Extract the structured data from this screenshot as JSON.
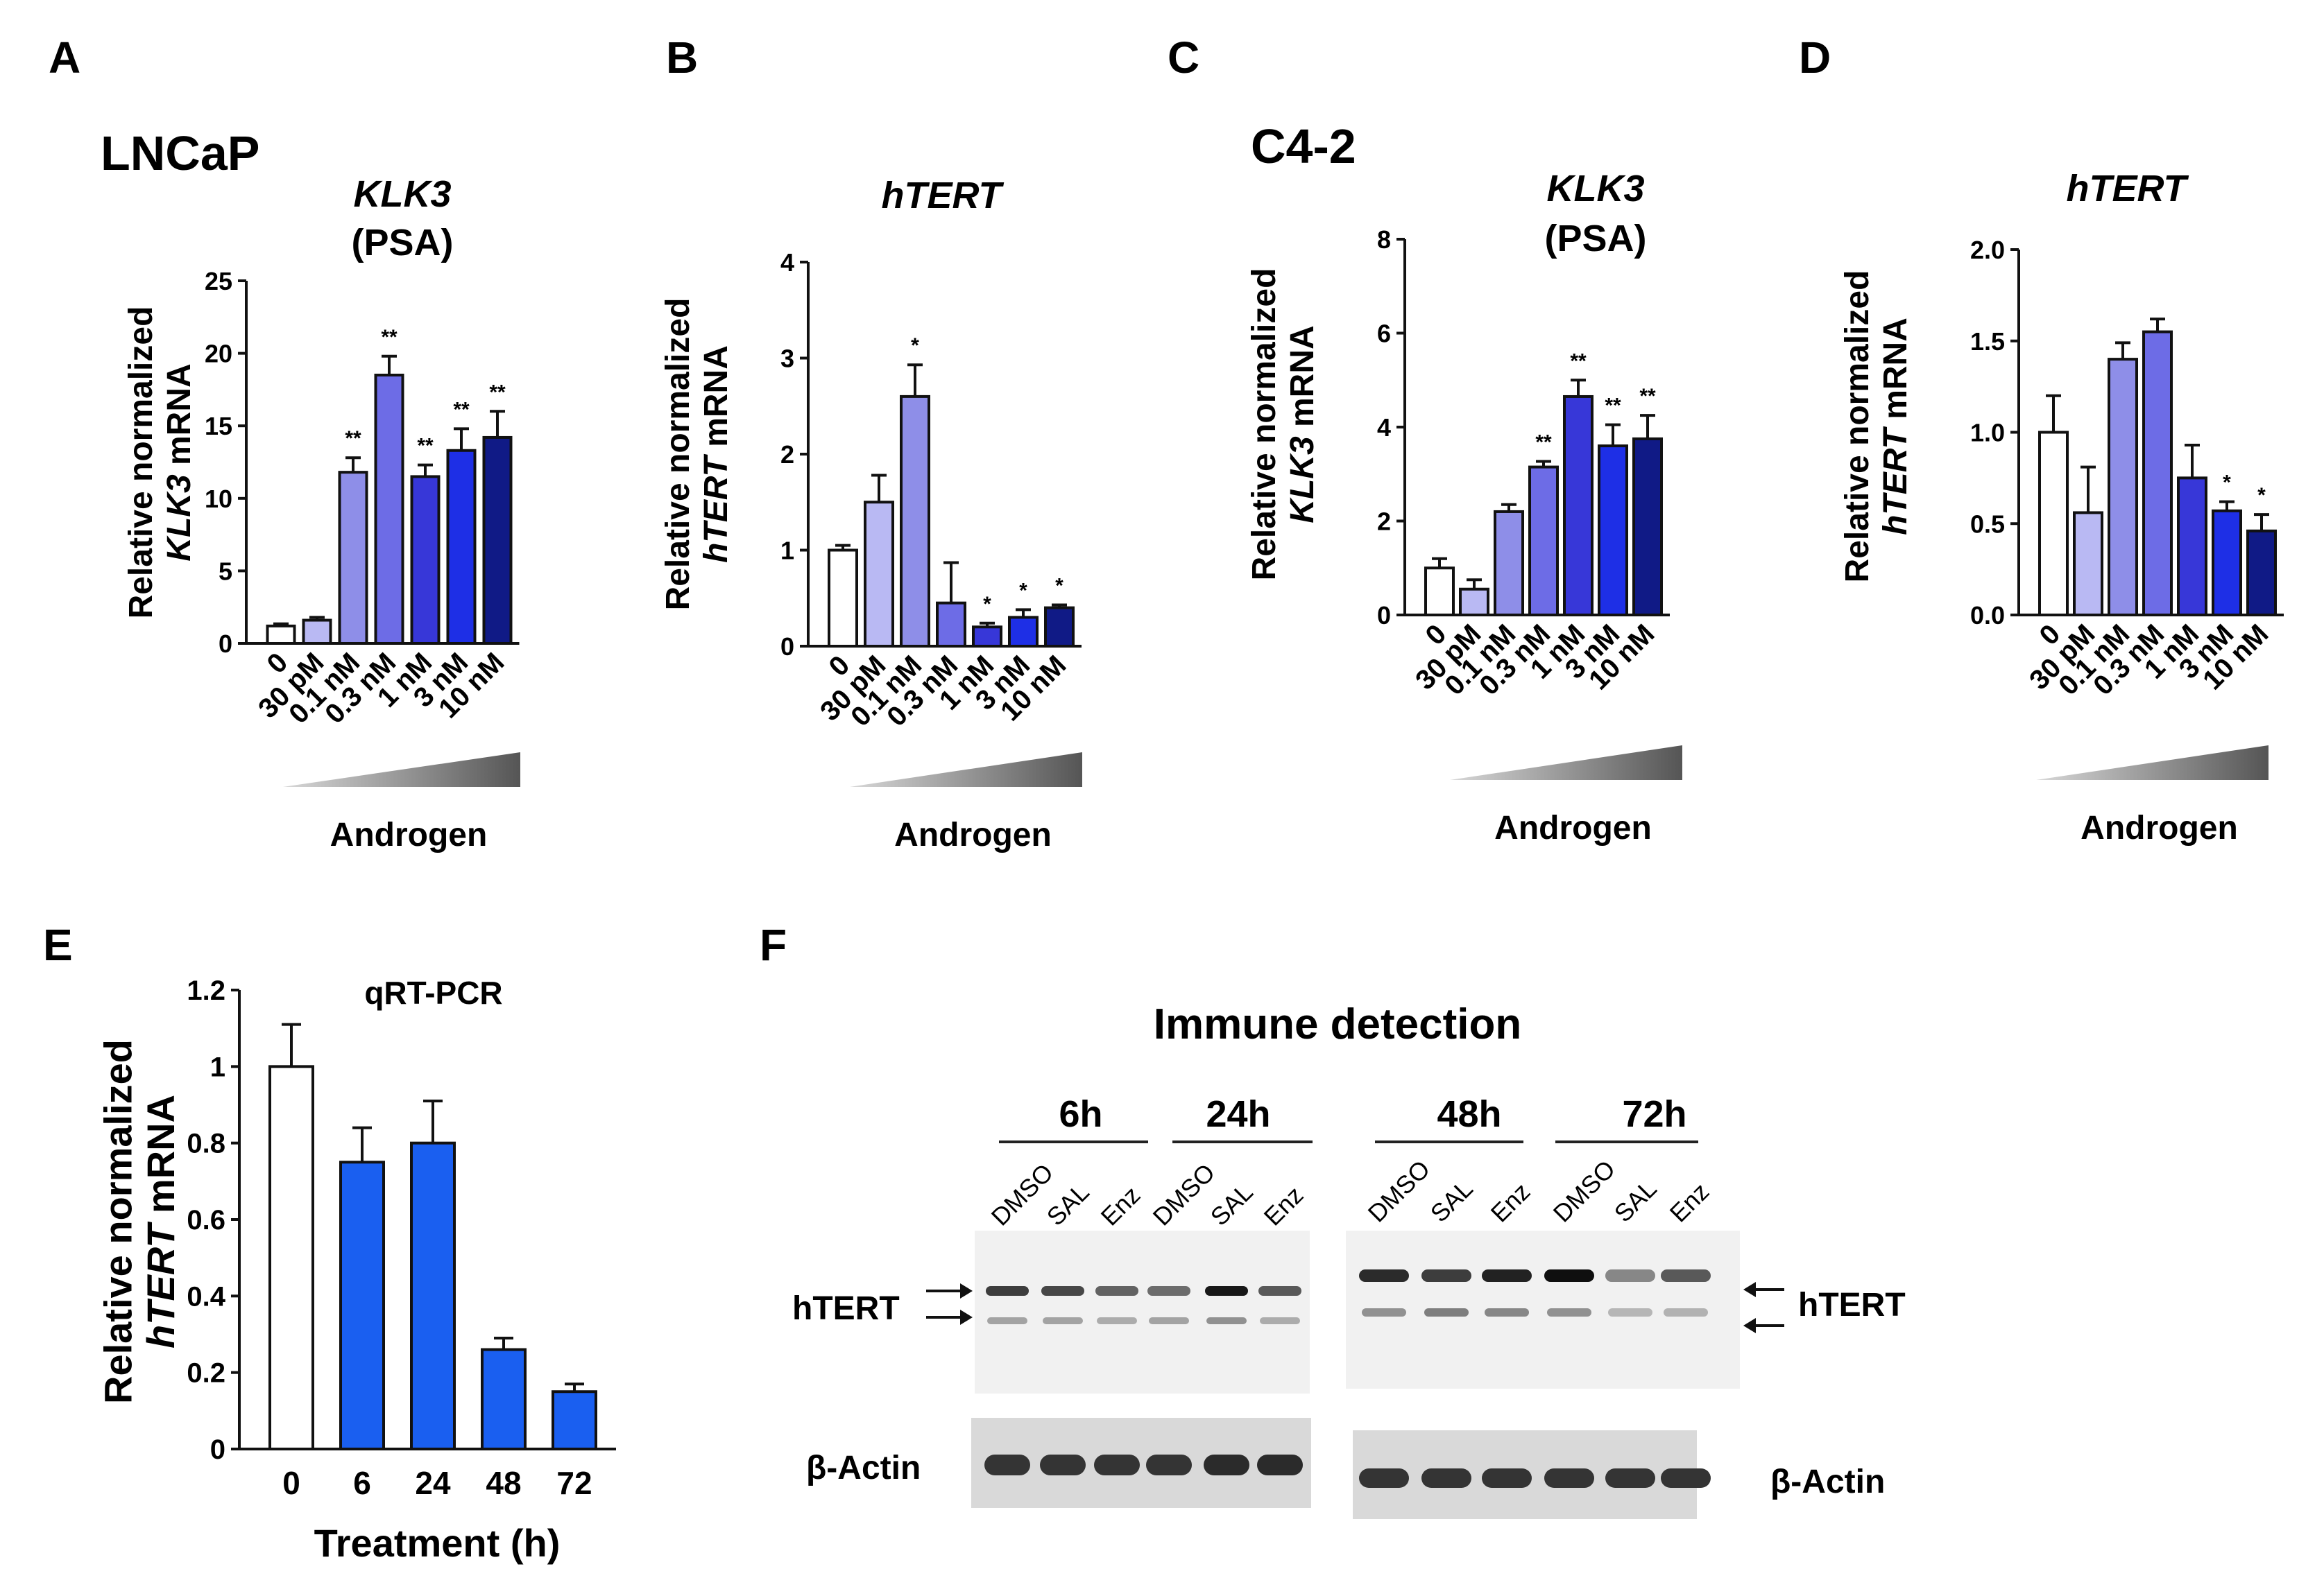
{
  "colors": {
    "c0": "#ffffff",
    "c30pM": "#b9b9f3",
    "c0_1nM": "#8e8ee8",
    "c0_3nM": "#6d6ce6",
    "c1nM": "#3737d8",
    "c3nM": "#1e2fe6",
    "c10nM": "#101a86",
    "blue": "#1a5ff0"
  },
  "panels": {
    "A": {
      "label": "A",
      "cell_line": "LNCaP"
    },
    "B": {
      "label": "B"
    },
    "C": {
      "label": "C",
      "cell_line": "C4-2"
    },
    "D": {
      "label": "D"
    },
    "E": {
      "label": "E"
    },
    "F": {
      "label": "F"
    }
  },
  "androgen_label": "Androgen",
  "chart_data": [
    {
      "id": "A",
      "type": "bar",
      "title_gene": "KLK3",
      "title_sub": "(PSA)",
      "ylabel_line1": "Relative normalized",
      "ylabel_gene": "KLK3",
      "ylabel_suffix": " mRNA",
      "categories": [
        "0",
        "30 pM",
        "0.1 nM",
        "0.3 nM",
        "1 nM",
        "3 nM",
        "10 nM"
      ],
      "values": [
        1.2,
        1.6,
        11.8,
        18.5,
        11.5,
        13.3,
        14.2
      ],
      "errors": [
        0.15,
        0.2,
        1.0,
        1.3,
        0.8,
        1.5,
        1.8
      ],
      "significance": [
        "",
        "",
        "**",
        "**",
        "**",
        "**",
        "**"
      ],
      "ylim": [
        0,
        25
      ],
      "yticks": [
        "0",
        "5",
        "10",
        "15",
        "20",
        "25"
      ],
      "ytick_values": [
        0,
        5,
        10,
        15,
        20,
        25
      ]
    },
    {
      "id": "B",
      "type": "bar",
      "title_gene": "hTERT",
      "title_sub": "",
      "ylabel_line1": "Relative normalized",
      "ylabel_gene": "hTERT",
      "ylabel_suffix": " mRNA",
      "categories": [
        "0",
        "30 pM",
        "0.1 nM",
        "0.3 nM",
        "1 nM",
        "3 nM",
        "10 nM"
      ],
      "values": [
        1.0,
        1.5,
        2.6,
        0.45,
        0.2,
        0.3,
        0.4
      ],
      "errors": [
        0.05,
        0.28,
        0.33,
        0.42,
        0.04,
        0.08,
        0.03
      ],
      "significance": [
        "",
        "",
        "*",
        "",
        "*",
        "*",
        "*"
      ],
      "ylim": [
        0,
        4
      ],
      "yticks": [
        "0",
        "1",
        "2",
        "3",
        "4"
      ],
      "ytick_values": [
        0,
        1,
        2,
        3,
        4
      ]
    },
    {
      "id": "C",
      "type": "bar",
      "title_gene": "KLK3",
      "title_sub": "(PSA)",
      "ylabel_line1": "Relative normalized",
      "ylabel_gene": "KLK3",
      "ylabel_suffix": " mRNA",
      "categories": [
        "0",
        "30 pM",
        "0.1 nM",
        "0.3 nM",
        "1 nM",
        "3 nM",
        "10 nM"
      ],
      "values": [
        1.0,
        0.55,
        2.2,
        3.15,
        4.65,
        3.6,
        3.75
      ],
      "errors": [
        0.2,
        0.2,
        0.15,
        0.12,
        0.35,
        0.45,
        0.5
      ],
      "significance": [
        "",
        "",
        "",
        "**",
        "**",
        "**",
        "**"
      ],
      "ylim": [
        0,
        8
      ],
      "yticks": [
        "0",
        "2",
        "4",
        "6",
        "8"
      ],
      "ytick_values": [
        0,
        2,
        4,
        6,
        8
      ]
    },
    {
      "id": "D",
      "type": "bar",
      "title_gene": "hTERT",
      "title_sub": "",
      "ylabel_line1": "Relative normalized",
      "ylabel_gene": "hTERT",
      "ylabel_suffix": " mRNA",
      "categories": [
        "0",
        "30 pM",
        "0.1 nM",
        "0.3 nM",
        "1 nM",
        "3 nM",
        "10 nM"
      ],
      "values": [
        1.0,
        0.56,
        1.4,
        1.55,
        0.75,
        0.57,
        0.46
      ],
      "errors": [
        0.2,
        0.25,
        0.09,
        0.07,
        0.18,
        0.05,
        0.09
      ],
      "significance": [
        "",
        "",
        "",
        "",
        "",
        "*",
        "*"
      ],
      "ylim": [
        0,
        2.0
      ],
      "yticks": [
        "0.0",
        "0.5",
        "1.0",
        "1.5",
        "2.0"
      ],
      "ytick_values": [
        0,
        0.5,
        1.0,
        1.5,
        2.0
      ]
    },
    {
      "id": "E",
      "type": "bar",
      "title": "qRT-PCR",
      "ylabel_line1": "Relative normalized",
      "ylabel_gene": "hTERT",
      "ylabel_suffix": " mRNA",
      "xlabel": "Treatment (h)",
      "categories": [
        "0",
        "6",
        "24",
        "48",
        "72"
      ],
      "values": [
        1.0,
        0.75,
        0.8,
        0.26,
        0.15
      ],
      "errors": [
        0.11,
        0.09,
        0.11,
        0.03,
        0.02
      ],
      "ylim": [
        0,
        1.2
      ],
      "yticks": [
        "0",
        "0.2",
        "0.4",
        "0.6",
        "0.8",
        "1",
        "1.2"
      ],
      "ytick_values": [
        0,
        0.2,
        0.4,
        0.6,
        0.8,
        1.0,
        1.2
      ]
    }
  ],
  "blot": {
    "title": "Immune detection",
    "timepoints": [
      "6h",
      "24h",
      "48h",
      "72h"
    ],
    "lanes_left": [
      "DMSO",
      "SAL",
      "Enz",
      "DMSO",
      "SAL",
      "Enz"
    ],
    "lanes_right": [
      "DMSO",
      "SAL",
      "Enz",
      "DMSO",
      "SAL",
      "Enz"
    ],
    "target_label": "hTERT",
    "loading_label": "β-Actin",
    "upper_band_left": [
      0.75,
      0.7,
      0.55,
      0.5,
      0.95,
      0.6
    ],
    "lower_band_left": [
      0.2,
      0.2,
      0.15,
      0.2,
      0.3,
      0.15
    ],
    "upper_band_right": [
      0.85,
      0.75,
      0.9,
      1.0,
      0.35,
      0.6
    ],
    "lower_band_right": [
      0.3,
      0.4,
      0.35,
      0.3,
      0.1,
      0.12
    ],
    "actin_left": [
      0.8,
      0.8,
      0.8,
      0.8,
      0.85,
      0.85
    ],
    "actin_right": [
      0.8,
      0.8,
      0.8,
      0.8,
      0.8,
      0.8
    ]
  }
}
